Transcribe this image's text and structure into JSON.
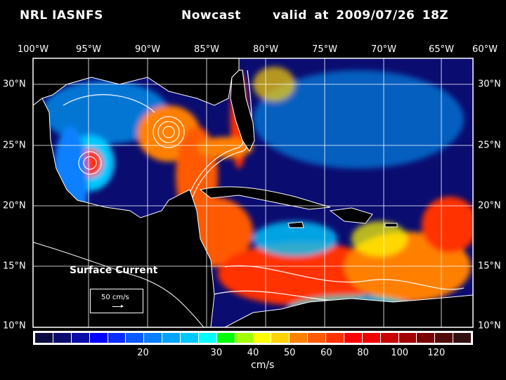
{
  "header": {
    "source": "NRL IASNFS",
    "product": "Nowcast",
    "valid": "valid at 2009/07/26 18Z"
  },
  "axes": {
    "longitudes": [
      "100°W",
      "95°W",
      "90°W",
      "85°W",
      "80°W",
      "75°W",
      "70°W",
      "65°W",
      "60°W"
    ],
    "latitudes": [
      "30°N",
      "25°N",
      "20°N",
      "15°N",
      "10°N"
    ]
  },
  "legend": {
    "field": "Surface Current",
    "scale_label": "50 cm/s",
    "units": "cm/s",
    "colors": [
      "#0a0a40",
      "#0a0a6e",
      "#0a0ca8",
      "#0000ff",
      "#0a2cff",
      "#0a5aff",
      "#0a80ff",
      "#00a4ff",
      "#00c8ff",
      "#00ffff",
      "#00ff00",
      "#a0ff00",
      "#ffff00",
      "#ffd200",
      "#ff8000",
      "#ff5a00",
      "#ff3200",
      "#ff0000",
      "#f00000",
      "#c80000",
      "#a00000",
      "#780000",
      "#500a0a",
      "#321010"
    ],
    "ticks": [
      {
        "label": "20",
        "boundary": 6
      },
      {
        "label": "30",
        "boundary": 10
      },
      {
        "label": "40",
        "boundary": 12
      },
      {
        "label": "50",
        "boundary": 14
      },
      {
        "label": "60",
        "boundary": 16
      },
      {
        "label": "80",
        "boundary": 18
      },
      {
        "label": "100",
        "boundary": 20
      },
      {
        "label": "120",
        "boundary": 22
      }
    ]
  }
}
